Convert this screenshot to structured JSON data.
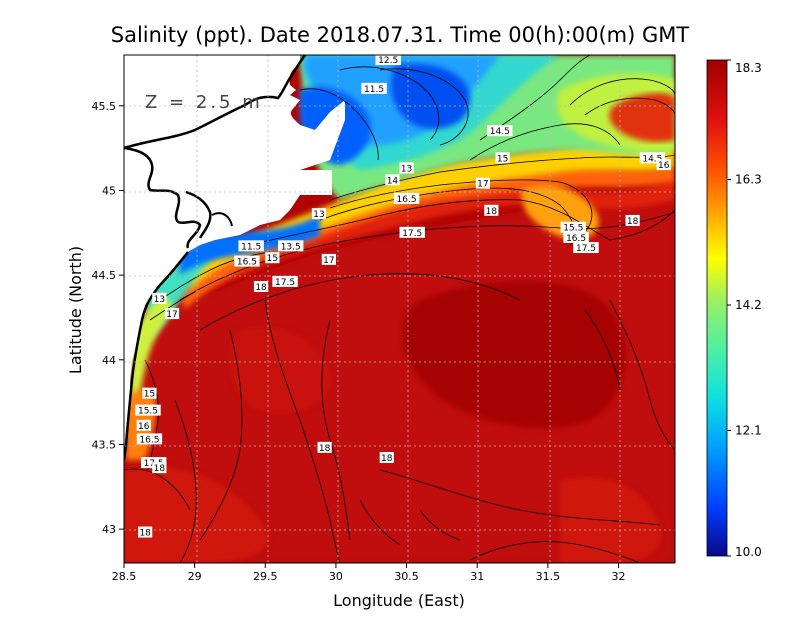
{
  "chart_data": {
    "type": "heatmap",
    "title": "Salinity (ppt). Date 2018.07.31. Time 00(h):00(m) GMT",
    "xlabel": "Longitude (East)",
    "ylabel": "Latitude (North)",
    "depth_annotation": "Z = 2.5 m",
    "xlim": [
      28.5,
      32.4
    ],
    "ylim": [
      42.8,
      45.8
    ],
    "x_ticks": [
      "28.5",
      "29",
      "29.5",
      "30",
      "30.5",
      "31",
      "31.5",
      "32"
    ],
    "y_ticks": [
      "43",
      "43.5",
      "44",
      "44.5",
      "45",
      "45.5"
    ],
    "grid": true,
    "colorbar": {
      "min": 10.0,
      "max": 18.3,
      "tick_labels": [
        "10.0",
        "12.1",
        "14.2",
        "16.3",
        "18.3"
      ],
      "colors": [
        "#08088a",
        "#0040ff",
        "#00a0ff",
        "#10e0e0",
        "#50f0a0",
        "#a0f060",
        "#ffff00",
        "#ffb000",
        "#ff5000",
        "#e01010",
        "#a00000"
      ]
    },
    "contour_labels": [
      {
        "text": "12.5",
        "x": 30.37,
        "y": 45.77
      },
      {
        "text": "11.5",
        "x": 30.27,
        "y": 45.6
      },
      {
        "text": "14.5",
        "x": 31.16,
        "y": 45.35
      },
      {
        "text": "15",
        "x": 31.18,
        "y": 45.19
      },
      {
        "text": "14.5",
        "x": 32.24,
        "y": 45.19
      },
      {
        "text": "16",
        "x": 32.32,
        "y": 45.15
      },
      {
        "text": "13",
        "x": 30.5,
        "y": 45.13
      },
      {
        "text": "14",
        "x": 30.4,
        "y": 45.06
      },
      {
        "text": "16.5",
        "x": 30.5,
        "y": 44.95
      },
      {
        "text": "17",
        "x": 31.04,
        "y": 45.04
      },
      {
        "text": "18",
        "x": 31.1,
        "y": 44.88
      },
      {
        "text": "13",
        "x": 29.88,
        "y": 44.86
      },
      {
        "text": "17.5",
        "x": 30.54,
        "y": 44.75
      },
      {
        "text": "15.5",
        "x": 31.68,
        "y": 44.78
      },
      {
        "text": "16.5",
        "x": 31.7,
        "y": 44.72
      },
      {
        "text": "17.5",
        "x": 31.77,
        "y": 44.66
      },
      {
        "text": "18",
        "x": 32.1,
        "y": 44.82
      },
      {
        "text": "11.5",
        "x": 29.4,
        "y": 44.67
      },
      {
        "text": "13.5",
        "x": 29.68,
        "y": 44.67
      },
      {
        "text": "16.5",
        "x": 29.37,
        "y": 44.58
      },
      {
        "text": "15",
        "x": 29.55,
        "y": 44.6
      },
      {
        "text": "17",
        "x": 29.95,
        "y": 44.59
      },
      {
        "text": "18",
        "x": 29.47,
        "y": 44.43
      },
      {
        "text": "17.5",
        "x": 29.64,
        "y": 44.46
      },
      {
        "text": "13",
        "x": 28.75,
        "y": 44.36
      },
      {
        "text": "17",
        "x": 28.84,
        "y": 44.27
      },
      {
        "text": "15",
        "x": 28.68,
        "y": 43.8
      },
      {
        "text": "15.5",
        "x": 28.67,
        "y": 43.7
      },
      {
        "text": "16",
        "x": 28.64,
        "y": 43.61
      },
      {
        "text": "16.5",
        "x": 28.68,
        "y": 43.53
      },
      {
        "text": "17.5",
        "x": 28.71,
        "y": 43.39
      },
      {
        "text": "18",
        "x": 28.75,
        "y": 43.36
      },
      {
        "text": "18",
        "x": 29.92,
        "y": 43.48
      },
      {
        "text": "18",
        "x": 30.36,
        "y": 43.42
      },
      {
        "text": "18",
        "x": 28.65,
        "y": 42.98
      }
    ]
  }
}
